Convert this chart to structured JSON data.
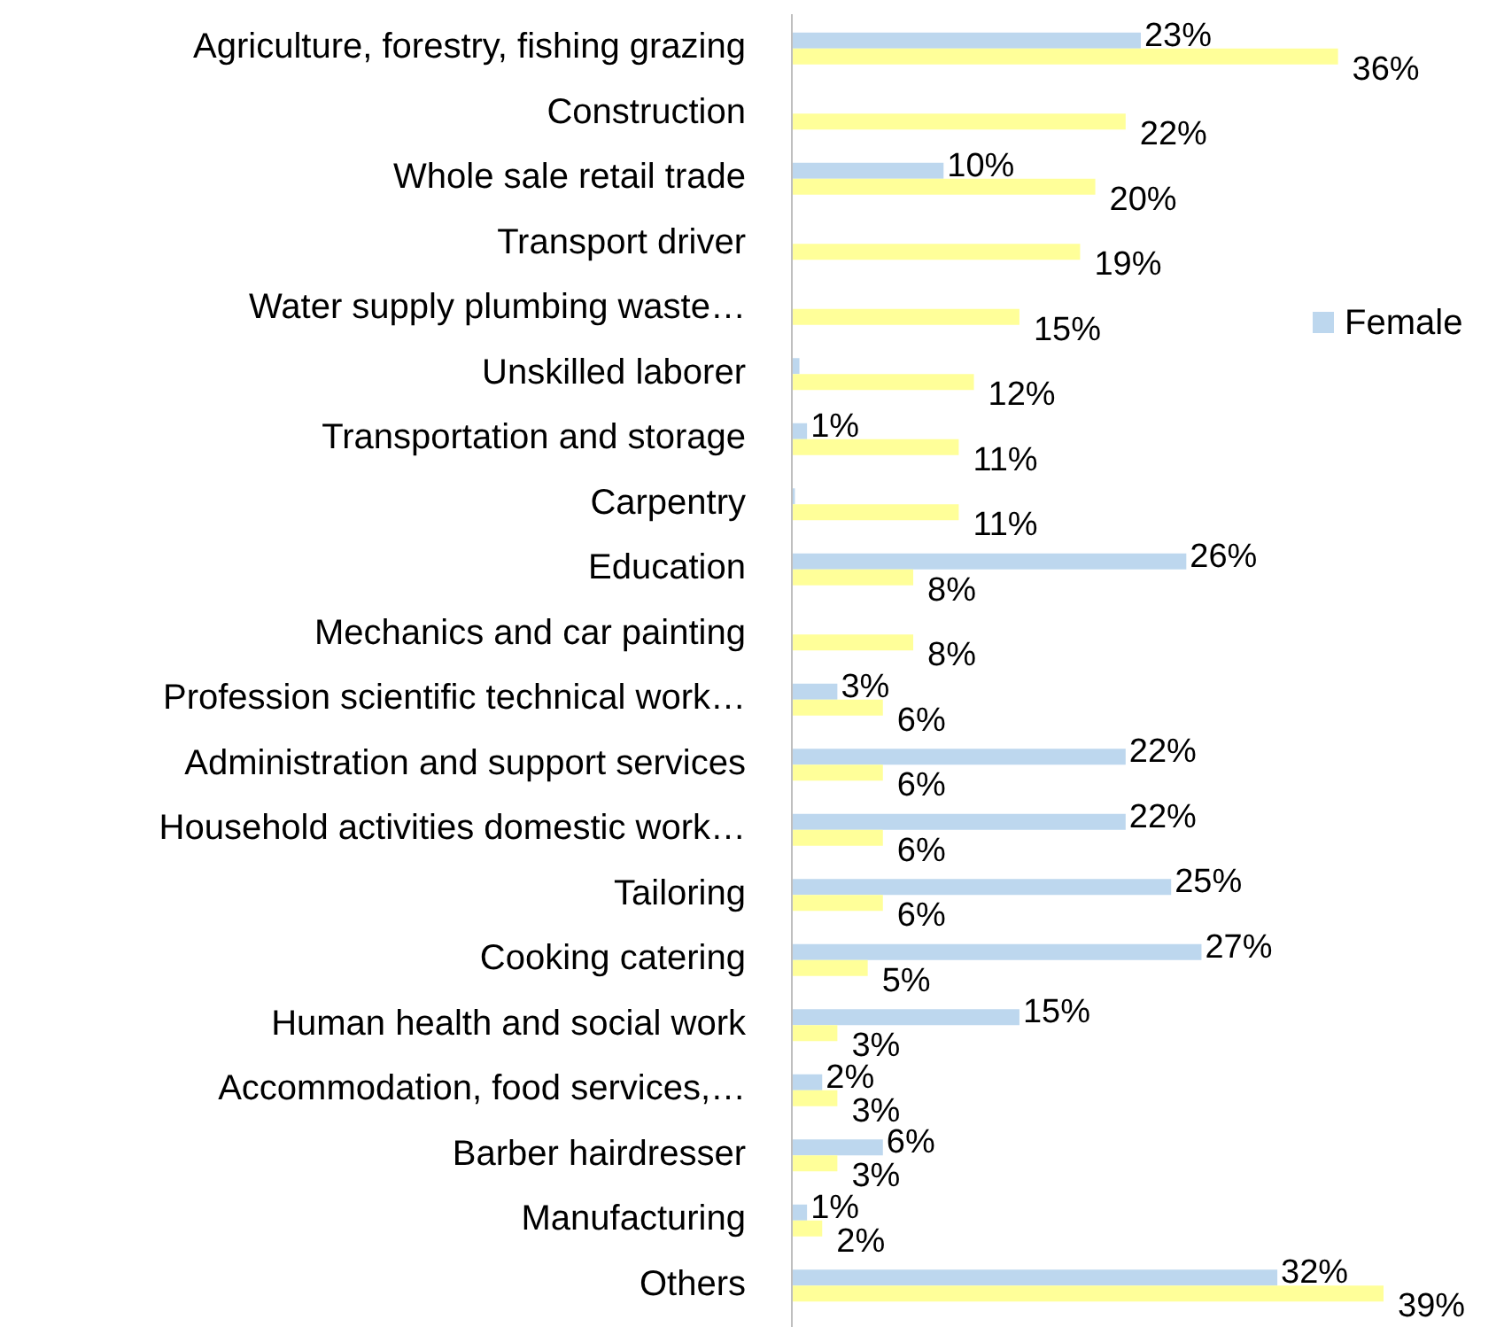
{
  "chart_data": {
    "type": "bar",
    "orientation": "horizontal",
    "legend": "right",
    "categories": [
      "Agriculture, forestry, fishing grazing",
      "Construction",
      "Whole sale retail trade",
      "Transport driver",
      "Water supply plumbing waste…",
      "Unskilled laborer",
      "Transportation and storage",
      "Carpentry",
      "Education",
      "Mechanics and car painting",
      "Profession scientific technical work…",
      "Administration and support services",
      "Household activities domestic work…",
      "Tailoring",
      "Cooking catering",
      "Human health and social work",
      "Accommodation, food services,…",
      "Barber hairdresser",
      "Manufacturing",
      "Others"
    ],
    "series": [
      {
        "name": "Female",
        "color": "#bdd7ee",
        "values": [
          23,
          null,
          10,
          null,
          null,
          0.5,
          1,
          0.2,
          26,
          null,
          3,
          22,
          22,
          25,
          27,
          15,
          2,
          6,
          1,
          32
        ],
        "value_labels": [
          "23%",
          null,
          "10%",
          null,
          null,
          null,
          "1%",
          null,
          "26%",
          null,
          "3%",
          "22%",
          "22%",
          "25%",
          "27%",
          "15%",
          "2%",
          "6%",
          "1%",
          "32%"
        ]
      },
      {
        "color": "#ffff99",
        "values": [
          36,
          22,
          20,
          19,
          15,
          12,
          11,
          11,
          8,
          8,
          6,
          6,
          6,
          6,
          5,
          3,
          3,
          3,
          2,
          39
        ],
        "value_labels": [
          "36%",
          "22%",
          "20%",
          "19%",
          "15%",
          "12%",
          "11%",
          "11%",
          "8%",
          "8%",
          "6%",
          "6%",
          "6%",
          "6%",
          "5%",
          "3%",
          "3%",
          "3%",
          "2%",
          "39%"
        ]
      }
    ]
  }
}
